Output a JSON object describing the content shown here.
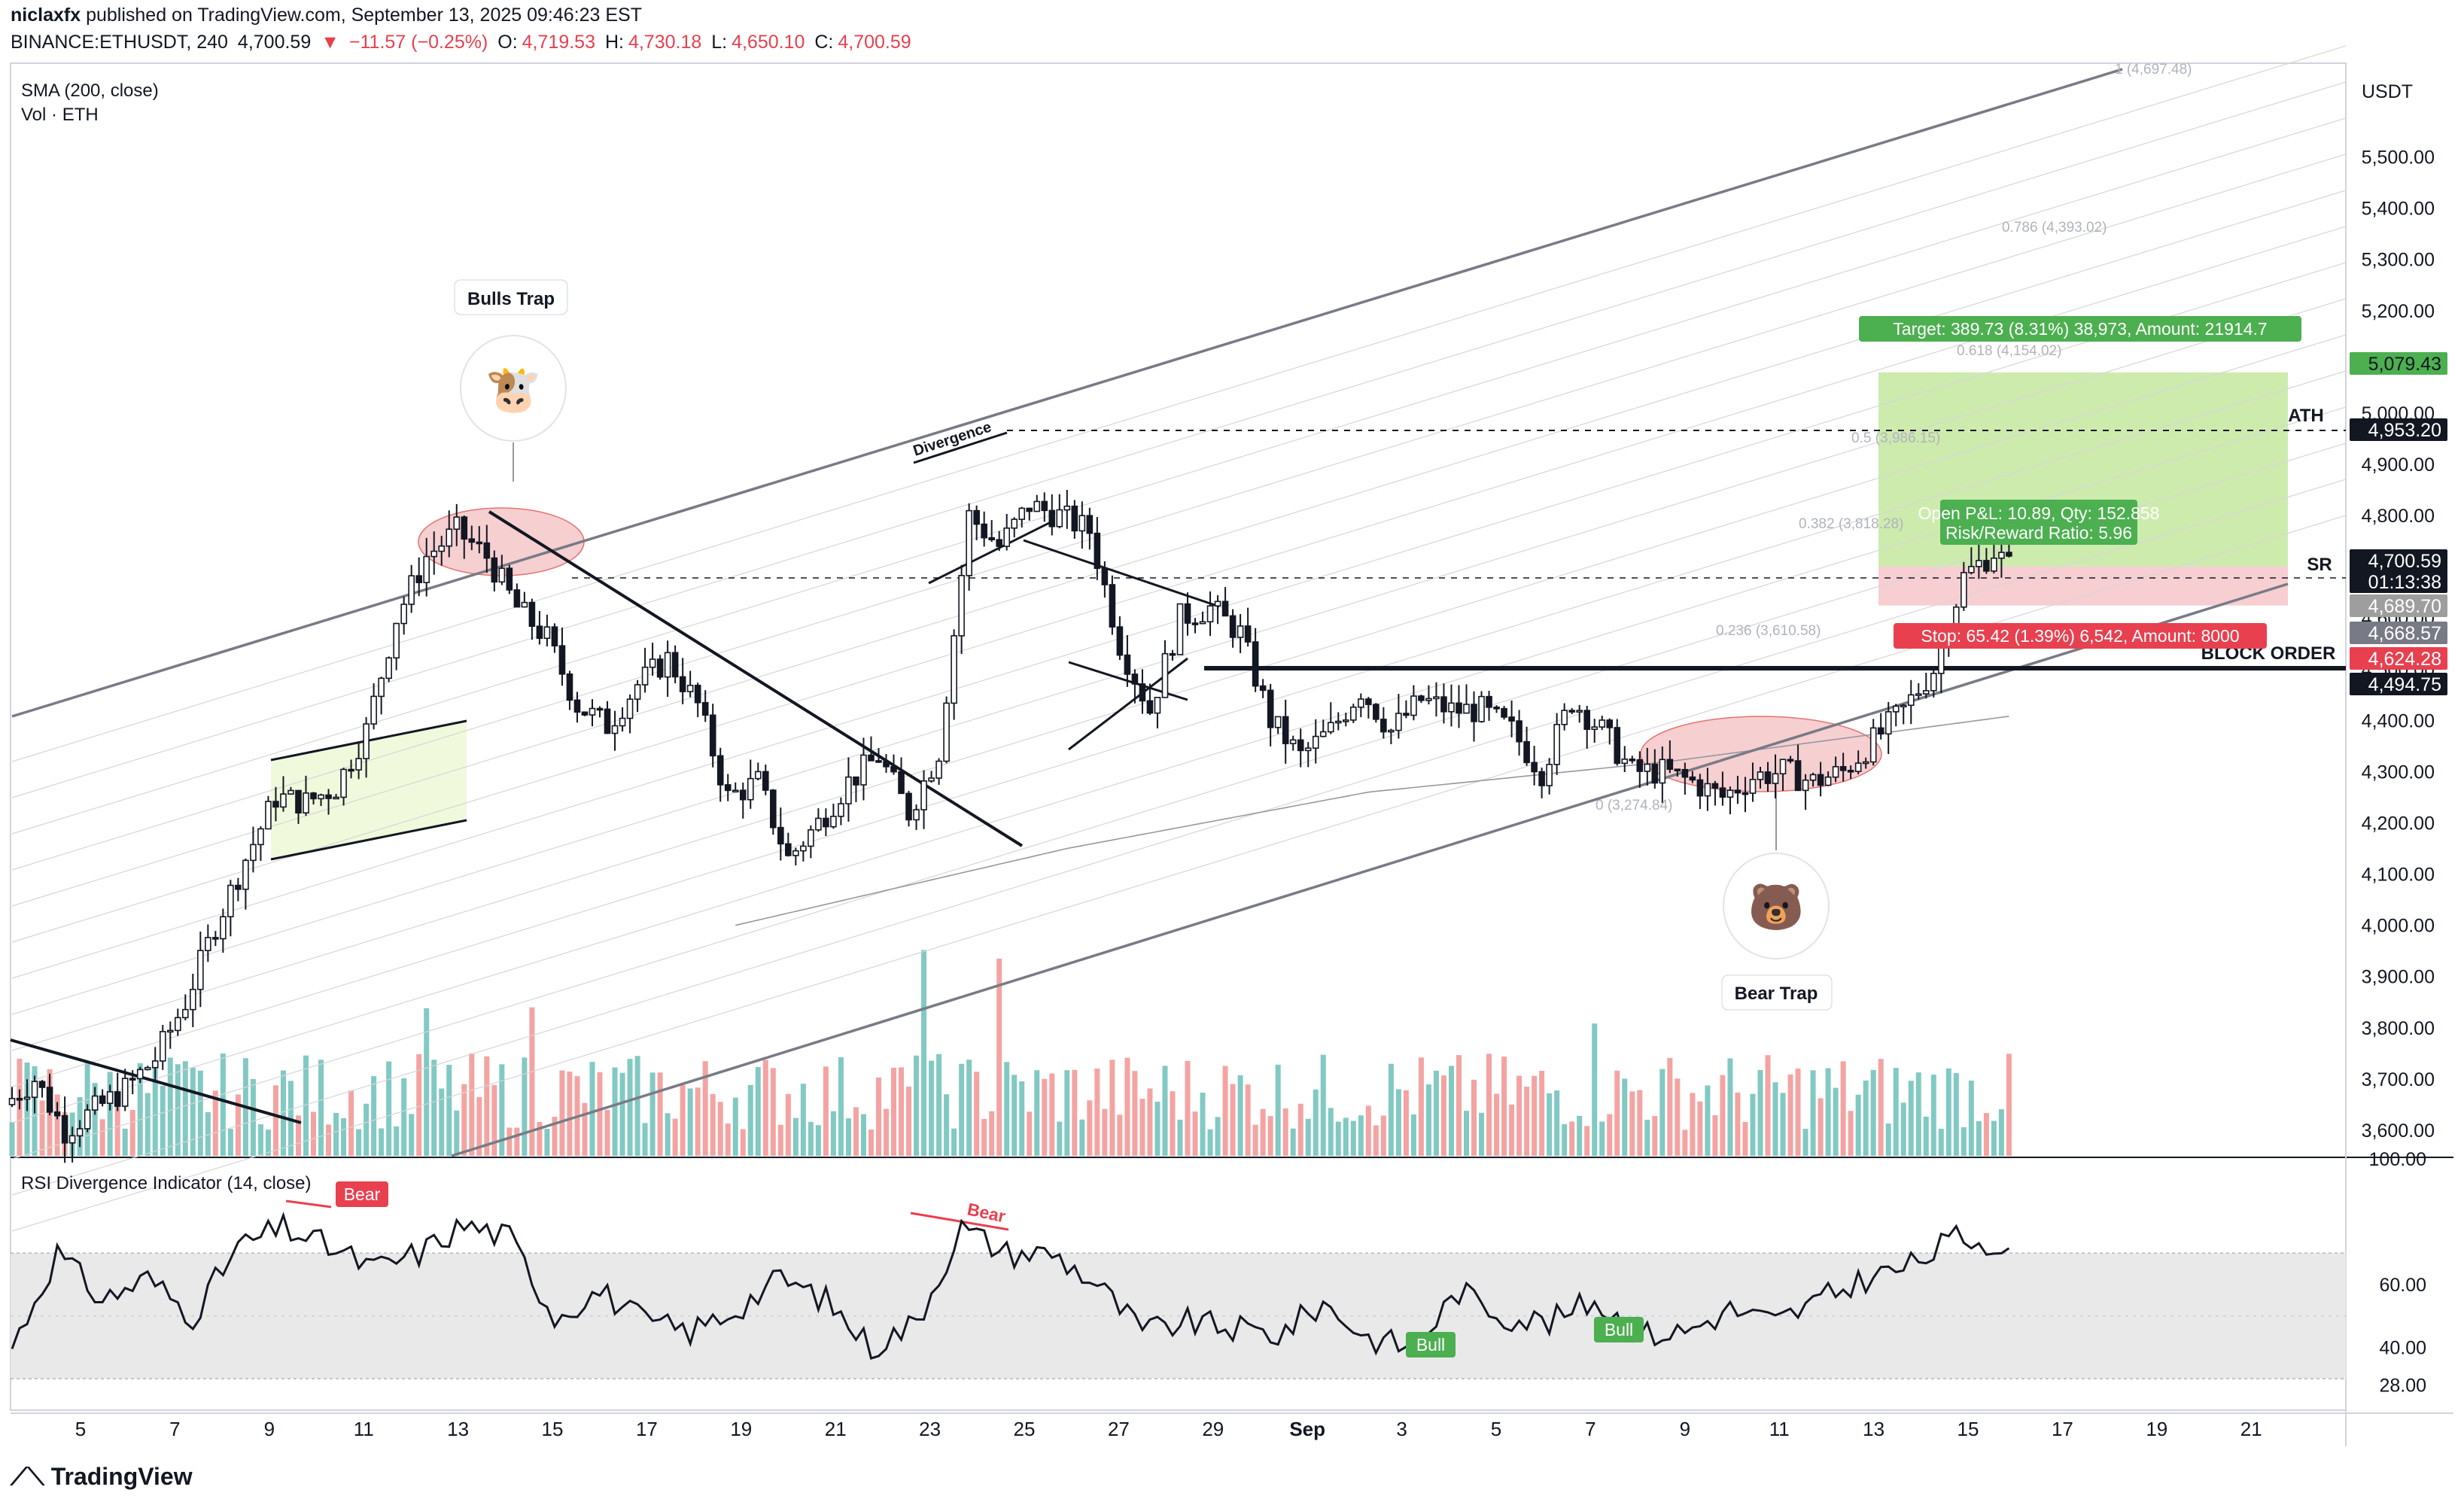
{
  "header": {
    "publisher": "niclaxfx",
    "published_text": "published on TradingView.com, September 13, 2025 09:46:23 EST",
    "symbol": "BINANCE:ETHUSDT, 240",
    "last": "4,700.59",
    "change": "−11.57 (−0.25%)",
    "o_label": "O:",
    "o": "4,719.53",
    "h_label": "H:",
    "h": "4,730.18",
    "l_label": "L:",
    "l": "4,650.10",
    "c_label": "C:",
    "c": "4,700.59"
  },
  "indicators": {
    "sma": "SMA (200, close)",
    "vol": "Vol · ETH",
    "rsi": "RSI Divergence Indicator (14, close)"
  },
  "annotations": {
    "bulls_trap": "Bulls Trap",
    "bear_trap": "Bear Trap",
    "divergence": "Divergence",
    "ath": "ATH",
    "sr": "SR",
    "block_order": "BLOCK ORDER",
    "target": "Target: 389.73 (8.31%) 38,973, Amount: 21914.7",
    "open_pnl": "Open P&L: 10.89, Qty: 152.858",
    "rr": "Risk/Reward Ratio: 5.96",
    "stop": "Stop: 65.42 (1.39%) 6,542, Amount: 8000",
    "rsi_bear": "Bear",
    "rsi_bull": "Bull"
  },
  "fib_levels": [
    {
      "text": "1 (4,697.48)"
    },
    {
      "text": "0.786 (4,393.02)"
    },
    {
      "text": "0.618 (4,154.02)"
    },
    {
      "text": "0.5 (3,986.15)"
    },
    {
      "text": "0.382 (3,818.28)"
    },
    {
      "text": "0.236 (3,610.58)"
    },
    {
      "text": "0 (3,274.84)"
    }
  ],
  "price_badges": [
    {
      "value": "5,079.43",
      "color": "#4caf50",
      "text_color": "#131722"
    },
    {
      "value": "4,953.20",
      "color": "#131722",
      "text_color": "#ffffff"
    },
    {
      "value": "4,700.59",
      "color": "#131722",
      "text_color": "#ffffff"
    },
    {
      "value": "01:13:38",
      "color": "#131722",
      "text_color": "#ffffff"
    },
    {
      "value": "4,689.70",
      "color": "#9e9e9e",
      "text_color": "#ffffff"
    },
    {
      "value": "4,668.57",
      "color": "#787b86",
      "text_color": "#ffffff"
    },
    {
      "value": "4,624.28",
      "color": "#e8404f",
      "text_color": "#ffffff"
    },
    {
      "value": "4,494.75",
      "color": "#131722",
      "text_color": "#ffffff"
    }
  ],
  "colors": {
    "up": "#26a69a",
    "down": "#ef5350",
    "vol_up": "#82c9c3",
    "vol_down": "#f3a4a2",
    "target_zone": "#c5e8a0",
    "stop_zone": "#f6c9cc",
    "flag": "#eef8d8",
    "trap": "#f6cfd0"
  },
  "footer": {
    "logo": "TradingView"
  },
  "chart_data": [
    {
      "type": "candlestick",
      "title": "BINANCE:ETHUSDT, 240",
      "ylabel": "USDT",
      "ylim": [
        3550,
        5680
      ],
      "yticks": [
        "5,500.00",
        "5,400.00",
        "5,300.00",
        "5,200.00",
        "5,100.00",
        "5,000.00",
        "4,900.00",
        "4,800.00",
        "4,700.00",
        "4,600.00",
        "4,500.00",
        "4,400.00",
        "4,300.00",
        "4,200.00",
        "4,100.00",
        "4,000.00",
        "3,900.00",
        "3,800.00",
        "3,700.00",
        "3,600.00"
      ],
      "xticks": [
        "5",
        "7",
        "9",
        "11",
        "13",
        "15",
        "17",
        "19",
        "21",
        "23",
        "25",
        "27",
        "29",
        "Sep",
        "3",
        "5",
        "7",
        "9",
        "11",
        "13",
        "15",
        "17",
        "19",
        "21"
      ],
      "close_path": [
        [
          0,
          3650
        ],
        [
          4,
          3700
        ],
        [
          8,
          3600
        ],
        [
          12,
          3640
        ],
        [
          16,
          3680
        ],
        [
          20,
          3740
        ],
        [
          24,
          3850
        ],
        [
          28,
          4000
        ],
        [
          32,
          4130
        ],
        [
          36,
          4250
        ],
        [
          40,
          4240
        ],
        [
          44,
          4270
        ],
        [
          48,
          4380
        ],
        [
          52,
          4600
        ],
        [
          56,
          4720
        ],
        [
          60,
          4770
        ],
        [
          64,
          4720
        ],
        [
          68,
          4620
        ],
        [
          72,
          4560
        ],
        [
          76,
          4430
        ],
        [
          80,
          4390
        ],
        [
          84,
          4470
        ],
        [
          88,
          4520
        ],
        [
          92,
          4430
        ],
        [
          96,
          4250
        ],
        [
          100,
          4280
        ],
        [
          104,
          4130
        ],
        [
          108,
          4200
        ],
        [
          112,
          4280
        ],
        [
          116,
          4330
        ],
        [
          120,
          4220
        ],
        [
          124,
          4340
        ],
        [
          128,
          4800
        ],
        [
          132,
          4740
        ],
        [
          136,
          4820
        ],
        [
          140,
          4800
        ],
        [
          144,
          4770
        ],
        [
          148,
          4550
        ],
        [
          152,
          4420
        ],
        [
          156,
          4600
        ],
        [
          160,
          4620
        ],
        [
          164,
          4570
        ],
        [
          168,
          4400
        ],
        [
          172,
          4330
        ],
        [
          176,
          4380
        ],
        [
          180,
          4460
        ],
        [
          184,
          4380
        ],
        [
          188,
          4440
        ],
        [
          192,
          4420
        ],
        [
          196,
          4420
        ],
        [
          200,
          4380
        ],
        [
          204,
          4300
        ],
        [
          208,
          4440
        ],
        [
          212,
          4380
        ],
        [
          216,
          4300
        ],
        [
          220,
          4300
        ],
        [
          224,
          4280
        ],
        [
          228,
          4250
        ],
        [
          232,
          4290
        ],
        [
          236,
          4300
        ],
        [
          240,
          4280
        ],
        [
          244,
          4300
        ],
        [
          248,
          4360
        ],
        [
          252,
          4420
        ],
        [
          256,
          4500
        ],
        [
          260,
          4680
        ],
        [
          264,
          4730
        ],
        [
          266,
          4700
        ]
      ],
      "sma200": [
        [
          96,
          4000
        ],
        [
          140,
          4150
        ],
        [
          180,
          4260
        ],
        [
          220,
          4320
        ],
        [
          266,
          4410
        ]
      ],
      "volume": {
        "ylim": [
          0,
          420
        ],
        "note": "histogram under price, colored by candle direction"
      }
    },
    {
      "type": "line",
      "title": "RSI Divergence Indicator (14, close)",
      "ylim": [
        20,
        100
      ],
      "yticks": [
        "100.00",
        "60.00",
        "40.00",
        "28.00"
      ],
      "bands": [
        30,
        70
      ],
      "x": [
        0,
        6,
        12,
        18,
        24,
        30,
        36,
        42,
        48,
        54,
        60,
        66,
        72,
        78,
        84,
        90,
        96,
        102,
        108,
        114,
        120,
        126,
        132,
        138,
        144,
        150,
        156,
        162,
        168,
        174,
        180,
        186,
        192,
        198,
        204,
        210,
        216,
        222,
        228,
        234,
        240,
        246,
        252,
        258,
        264,
        266
      ],
      "values": [
        40,
        70,
        55,
        62,
        50,
        72,
        78,
        72,
        65,
        70,
        79,
        75,
        50,
        58,
        48,
        45,
        52,
        62,
        55,
        40,
        48,
        78,
        70,
        70,
        60,
        45,
        48,
        46,
        44,
        54,
        43,
        40,
        58,
        50,
        48,
        55,
        44,
        45,
        52,
        48,
        55,
        62,
        66,
        75,
        73,
        71
      ]
    }
  ]
}
